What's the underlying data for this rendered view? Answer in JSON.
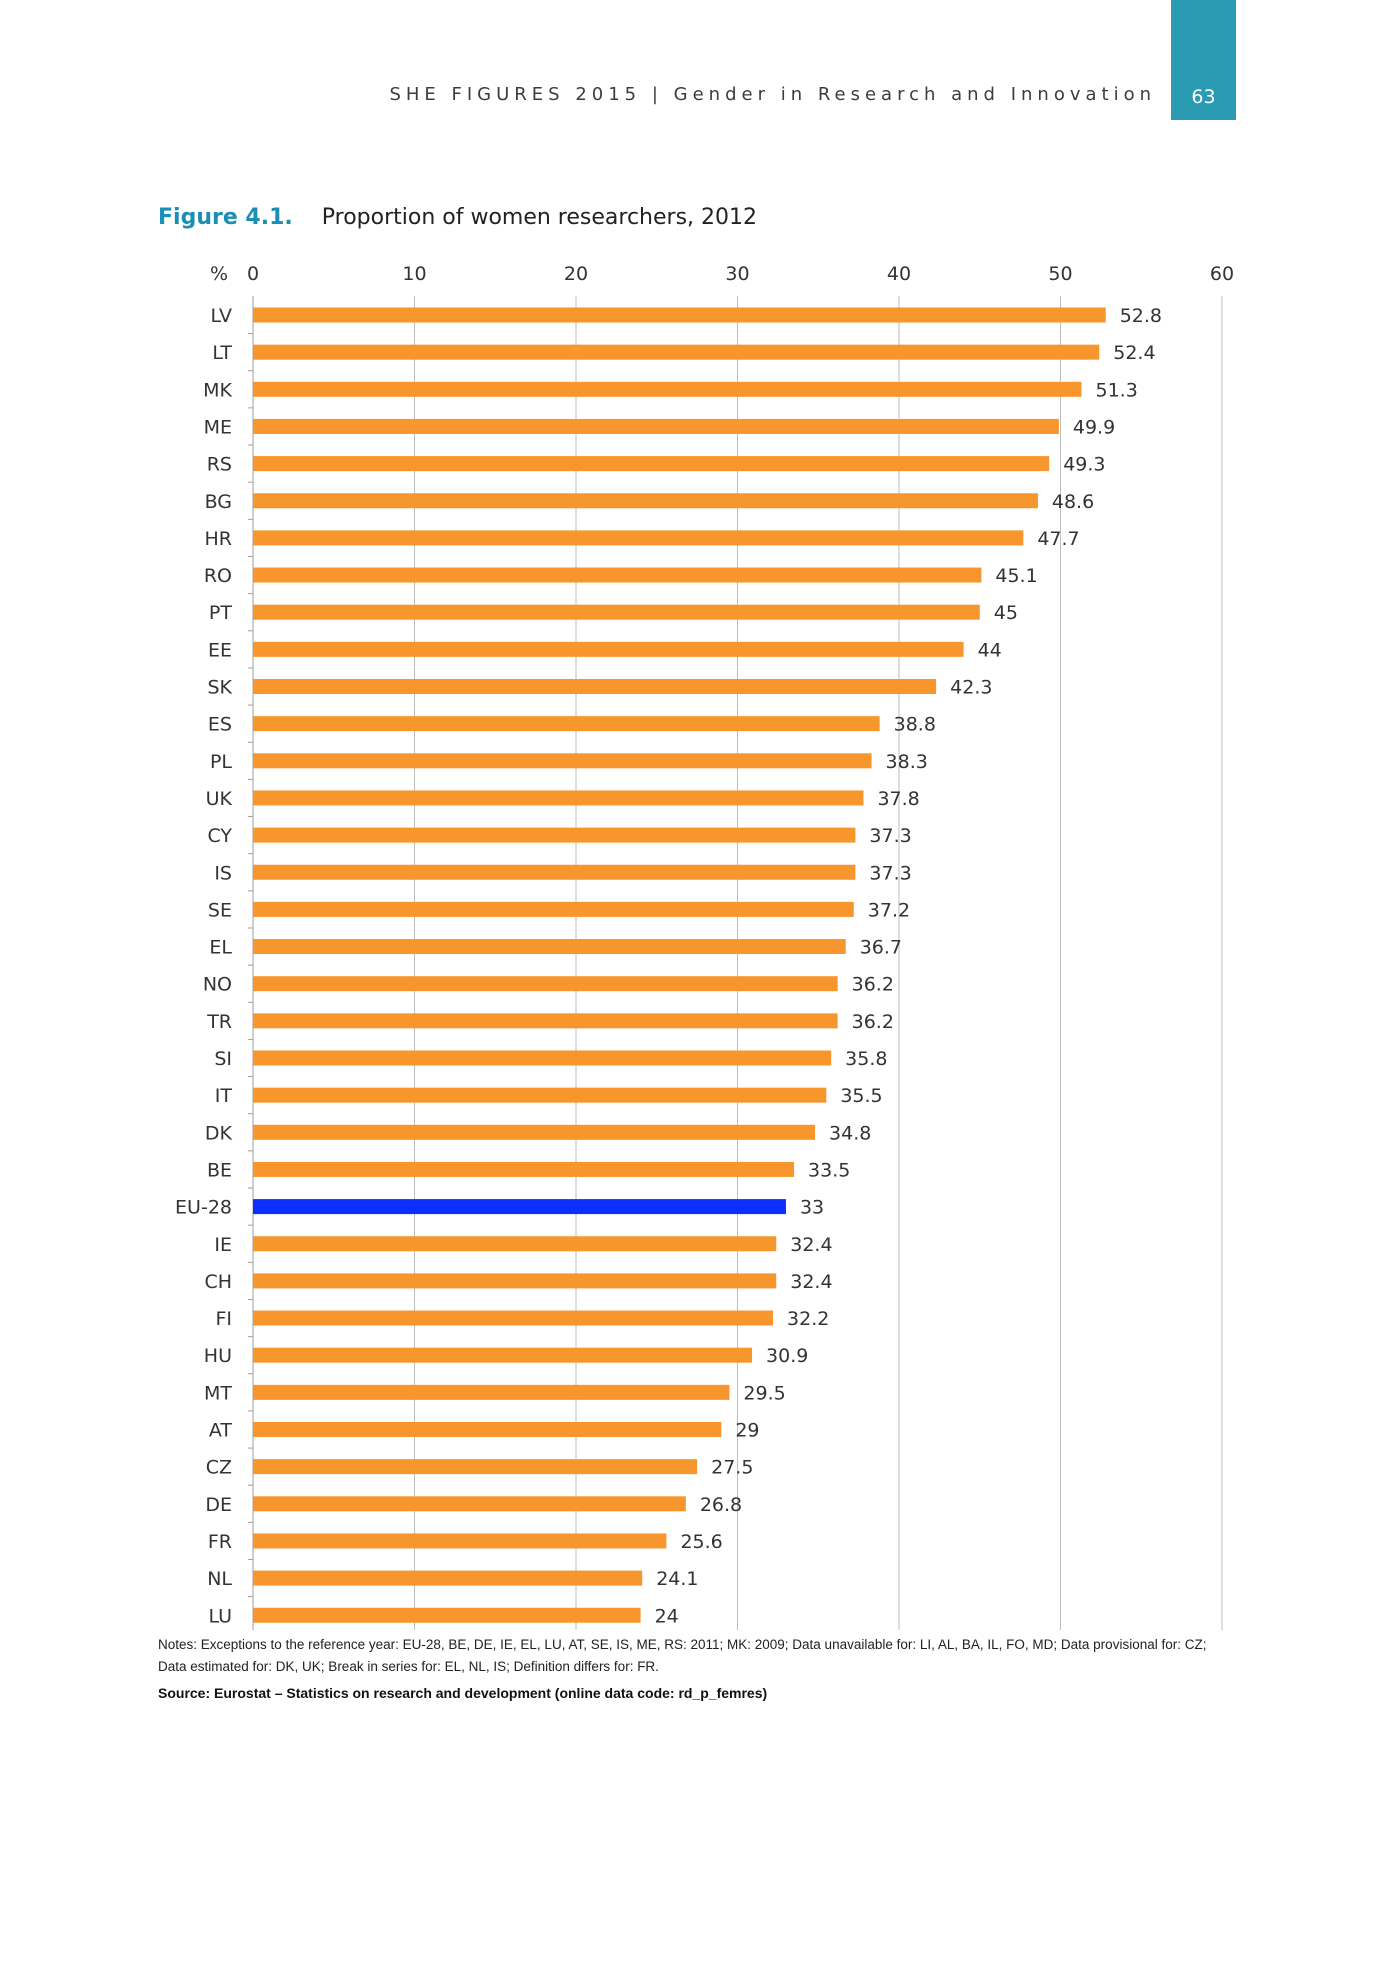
{
  "header": {
    "running_title": "SHE FIGURES 2015 | Gender in Research and Innovation",
    "page_number": "63"
  },
  "figure": {
    "label": "Figure 4.1.",
    "caption": "Proportion of women researchers, 2012"
  },
  "chart_data": {
    "type": "bar",
    "orientation": "horizontal",
    "title": "Proportion of women researchers, 2012",
    "unit_label": "%",
    "xlim": [
      0,
      60
    ],
    "x_ticks": [
      0,
      10,
      20,
      30,
      40,
      50,
      60
    ],
    "grid": true,
    "categories": [
      "LV",
      "LT",
      "MK",
      "ME",
      "RS",
      "BG",
      "HR",
      "RO",
      "PT",
      "EE",
      "SK",
      "ES",
      "PL",
      "UK",
      "CY",
      "IS",
      "SE",
      "EL",
      "NO",
      "TR",
      "SI",
      "IT",
      "DK",
      "BE",
      "EU-28",
      "IE",
      "CH",
      "FI",
      "HU",
      "MT",
      "AT",
      "CZ",
      "DE",
      "FR",
      "NL",
      "LU"
    ],
    "values": [
      52.8,
      52.4,
      51.3,
      49.9,
      49.3,
      48.6,
      47.7,
      45.1,
      45,
      44,
      42.3,
      38.8,
      38.3,
      37.8,
      37.3,
      37.3,
      37.2,
      36.7,
      36.2,
      36.2,
      35.8,
      35.5,
      34.8,
      33.5,
      33,
      32.4,
      32.4,
      32.2,
      30.9,
      29.5,
      29,
      27.5,
      26.8,
      25.6,
      24.1,
      24
    ],
    "bar_color": "#f7962d",
    "highlight_category": "EU-28",
    "highlight_color": "#0a2fff"
  },
  "notes": "Notes: Exceptions to the reference year: EU-28, BE, DE, IE, EL, LU, AT, SE, IS, ME, RS: 2011; MK: 2009; Data unavailable for: LI, AL, BA, IL, FO, MD; Data provisional for: CZ; Data estimated for: DK, UK; Break in series for: EL, NL, IS; Definition differs for: FR.",
  "source": "Source: Eurostat – Statistics on research and development (online data code: rd_p_femres)"
}
